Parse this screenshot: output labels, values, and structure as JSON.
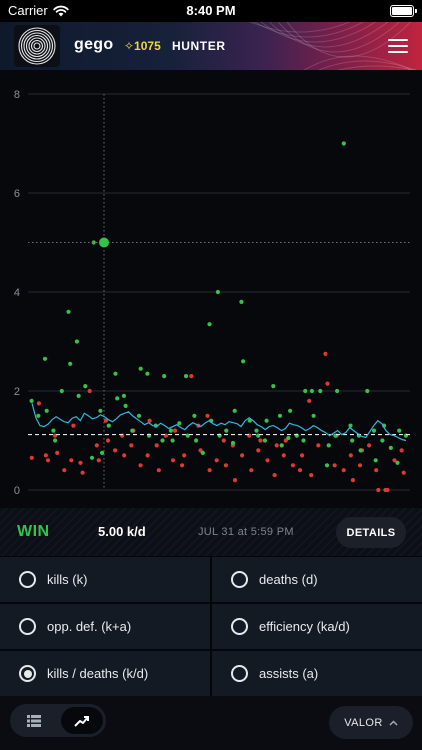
{
  "status_bar": {
    "carrier": "Carrier",
    "time": "8:40 PM"
  },
  "header": {
    "username": "gego",
    "power": "✧1075",
    "class_name": "HUNTER"
  },
  "chart_data": {
    "type": "scatter",
    "title": "",
    "xlabel": "",
    "ylabel": "",
    "ylim": [
      0,
      8
    ],
    "yticks": [
      0,
      2,
      4,
      6,
      8
    ],
    "grid": true,
    "reference_line": 1.12,
    "highlight": {
      "index": 13,
      "value": 5.0
    },
    "moving_average": [
      1.75,
      1.45,
      1.3,
      1.28,
      1.33,
      1.42,
      1.48,
      1.43,
      1.38,
      1.36,
      1.45,
      1.48,
      1.4,
      1.55,
      1.5,
      1.44,
      1.46,
      1.52,
      1.48,
      1.42,
      1.38,
      1.44,
      1.52,
      1.55,
      1.58,
      1.5,
      1.44,
      1.38,
      1.32,
      1.36,
      1.3,
      1.28,
      1.35,
      1.3,
      1.24,
      1.28,
      1.32,
      1.26,
      1.22,
      1.3,
      1.36,
      1.32,
      1.28,
      1.35,
      1.4,
      1.34,
      1.3,
      1.35,
      1.32,
      1.38,
      1.36,
      1.34,
      1.28,
      1.4,
      1.46,
      1.4,
      1.32,
      1.28,
      1.22,
      1.28,
      1.3,
      1.26,
      1.2,
      1.24,
      1.35,
      1.32,
      1.3,
      1.26,
      1.2,
      1.24,
      1.3,
      1.26,
      1.2,
      1.16,
      1.1,
      1.15,
      1.2,
      1.12,
      1.16,
      1.26,
      1.2,
      1.14,
      1.08,
      1.06,
      1.18,
      1.3,
      1.4,
      1.34,
      1.2,
      1.12,
      1.1,
      1.06,
      1.02,
      1.0
    ],
    "wins": [
      1.8,
      1.5,
      2.65,
      1.6,
      1.2,
      1.0,
      2.0,
      3.6,
      2.55,
      3.0,
      1.9,
      2.1,
      0.65,
      5.0,
      1.6,
      0.75,
      1.3,
      2.35,
      1.85,
      1.9,
      1.7,
      1.2,
      1.5,
      2.45,
      2.35,
      1.1,
      1.3,
      1.0,
      2.3,
      1.2,
      1.0,
      1.35,
      2.3,
      1.1,
      1.5,
      1.0,
      0.75,
      3.35,
      1.4,
      4.0,
      1.1,
      1.2,
      0.95,
      1.6,
      3.8,
      2.6,
      1.4,
      1.2,
      1.1,
      1.0,
      1.4,
      2.1,
      1.5,
      0.9,
      1.05,
      1.6,
      1.1,
      1.0,
      2.0,
      2.0,
      1.5,
      2.0,
      0.5,
      0.9,
      1.1,
      2.0,
      7.0,
      1.3,
      1.0,
      1.1,
      0.8,
      2.0,
      1.2,
      0.6,
      1.0,
      1.3,
      0.85,
      0.55,
      1.2,
      1.1
    ],
    "losses": [
      0.65,
      1.75,
      0.7,
      0.6,
      1.1,
      0.75,
      0.4,
      0.6,
      1.3,
      0.55,
      0.35,
      2.0,
      0.9,
      0.6,
      1.4,
      1.0,
      0.8,
      1.1,
      0.7,
      0.9,
      1.2,
      0.5,
      0.7,
      1.4,
      0.9,
      0.4,
      1.1,
      0.6,
      1.2,
      0.5,
      0.7,
      2.3,
      1.3,
      0.8,
      1.5,
      0.4,
      0.6,
      1.0,
      0.5,
      0.9,
      0.2,
      0.7,
      1.1,
      0.4,
      0.8,
      1.0,
      0.6,
      0.3,
      0.9,
      0.7,
      1.0,
      0.5,
      0.4,
      0.7,
      1.8,
      0.3,
      0.9,
      2.75,
      2.15,
      0.5,
      1.1,
      0.4,
      0.7,
      0.2,
      0.5,
      0.8,
      0.9,
      0.4,
      0.0,
      0.0,
      0.0,
      0.6,
      0.8,
      0.35
    ]
  },
  "summary": {
    "result": "WIN",
    "value": "5.00 k/d",
    "timestamp": "JUL 31 at 5:59 PM",
    "details_label": "DETAILS"
  },
  "options": [
    {
      "label": "kills (k)",
      "selected": false
    },
    {
      "label": "deaths (d)",
      "selected": false
    },
    {
      "label": "opp. def. (k+a)",
      "selected": false
    },
    {
      "label": "efficiency (ka/d)",
      "selected": false
    },
    {
      "label": "kills / deaths (k/d)",
      "selected": true
    },
    {
      "label": "assists (a)",
      "selected": false
    }
  ],
  "bottom_bar": {
    "list_view_icon": "list-icon",
    "chart_view_icon": "trend-chart-icon",
    "mode_label": "VALOR"
  },
  "colors": {
    "win": "#35c24a",
    "loss": "#e0392f",
    "trend": "#2fb7e0",
    "power": "#f2d440"
  }
}
